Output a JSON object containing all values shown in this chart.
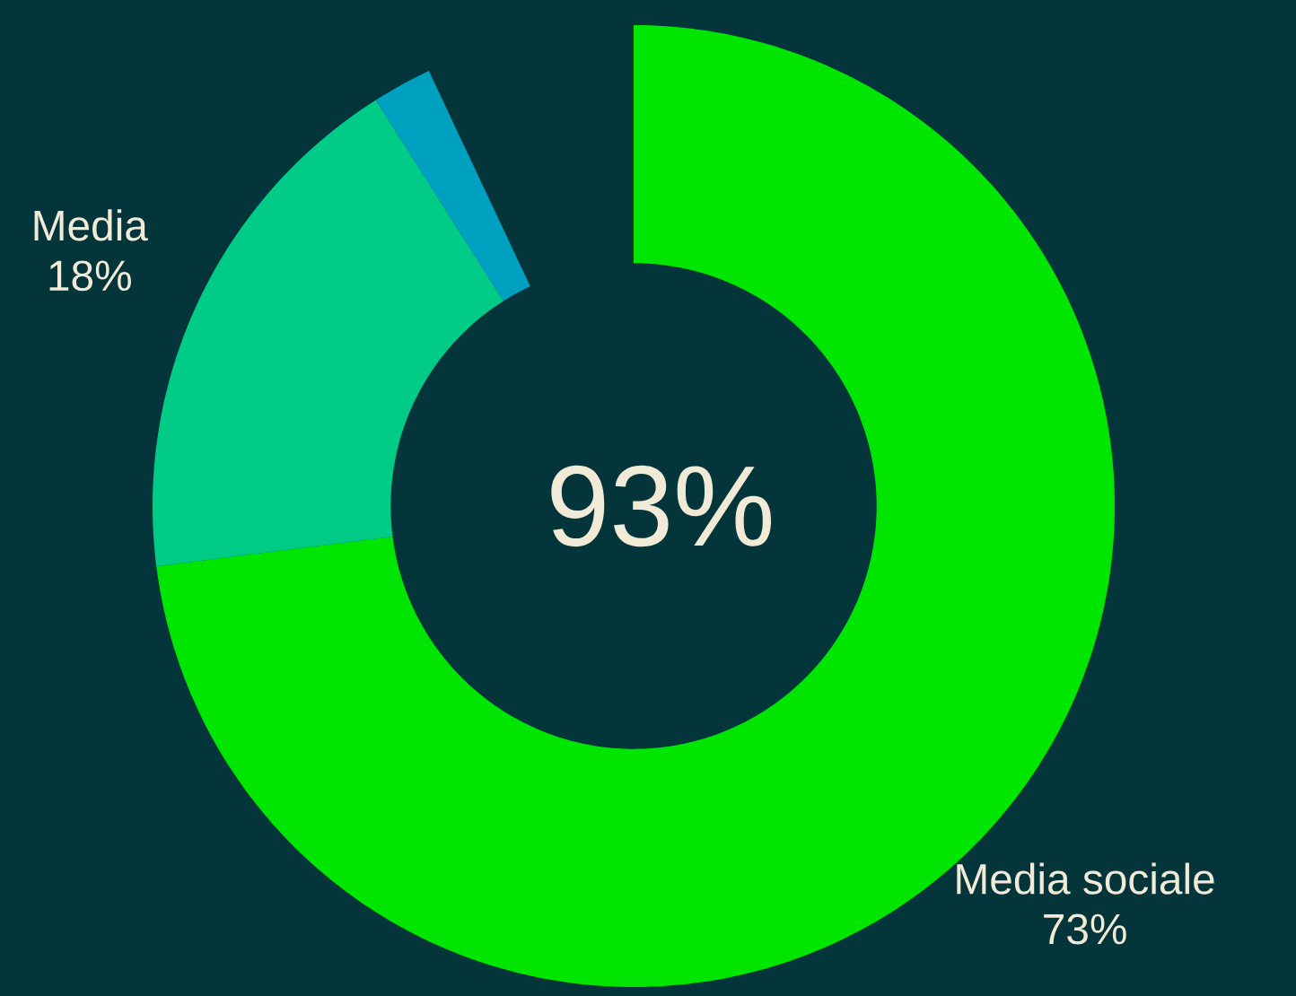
{
  "chart_data": {
    "type": "donut",
    "categories": [
      "Media sociale",
      "Media",
      null
    ],
    "values": [
      73,
      18,
      2
    ],
    "colors": [
      "#00e600",
      "#00cc88",
      "#00a0c0"
    ],
    "value_labels": [
      "73%",
      "18%",
      null
    ],
    "annotations": [
      "93%"
    ]
  }
}
